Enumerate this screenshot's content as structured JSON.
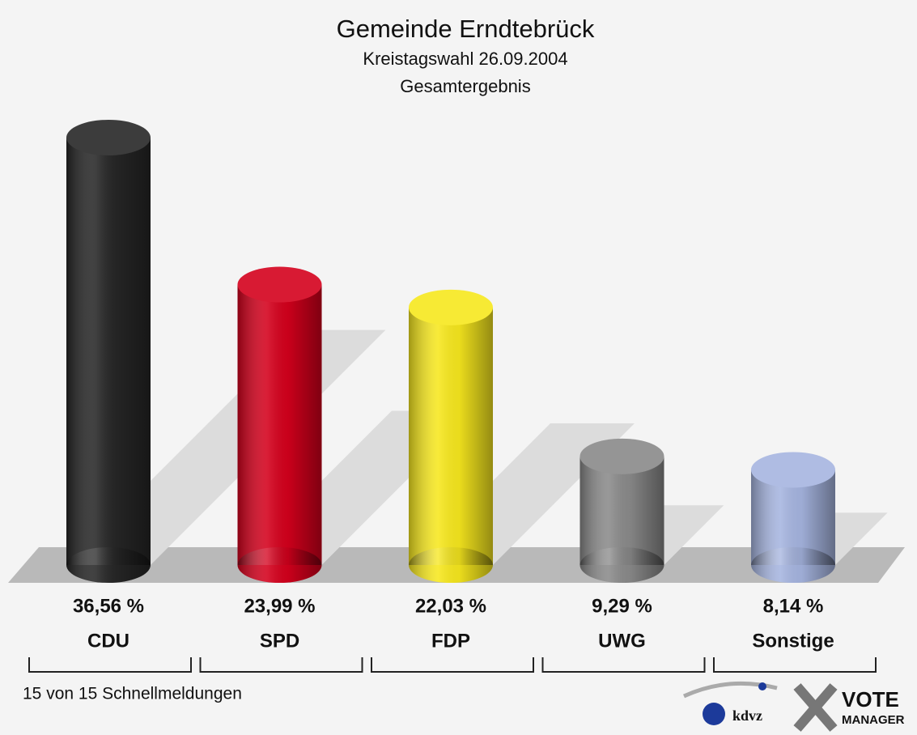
{
  "chart_data": {
    "type": "bar",
    "title": "Gemeinde Erndtebrück",
    "subtitle": "Kreistagswahl 26.09.2004",
    "subtitle2": "Gesamtergebnis",
    "categories": [
      "CDU",
      "SPD",
      "FDP",
      "UWG",
      "Sonstige"
    ],
    "values": [
      36.56,
      23.99,
      22.03,
      9.29,
      8.14
    ],
    "value_labels": [
      "36,56 %",
      "23,99 %",
      "22,03 %",
      "9,29 %",
      "8,14 %"
    ],
    "colors": [
      "#262626",
      "#d4001c",
      "#f7e81e",
      "#8a8a8a",
      "#a6b5e0"
    ],
    "footnote": "15 von 15 Schnellmeldungen",
    "brand": [
      "kdvz",
      "VOTE",
      "MANAGER"
    ]
  }
}
